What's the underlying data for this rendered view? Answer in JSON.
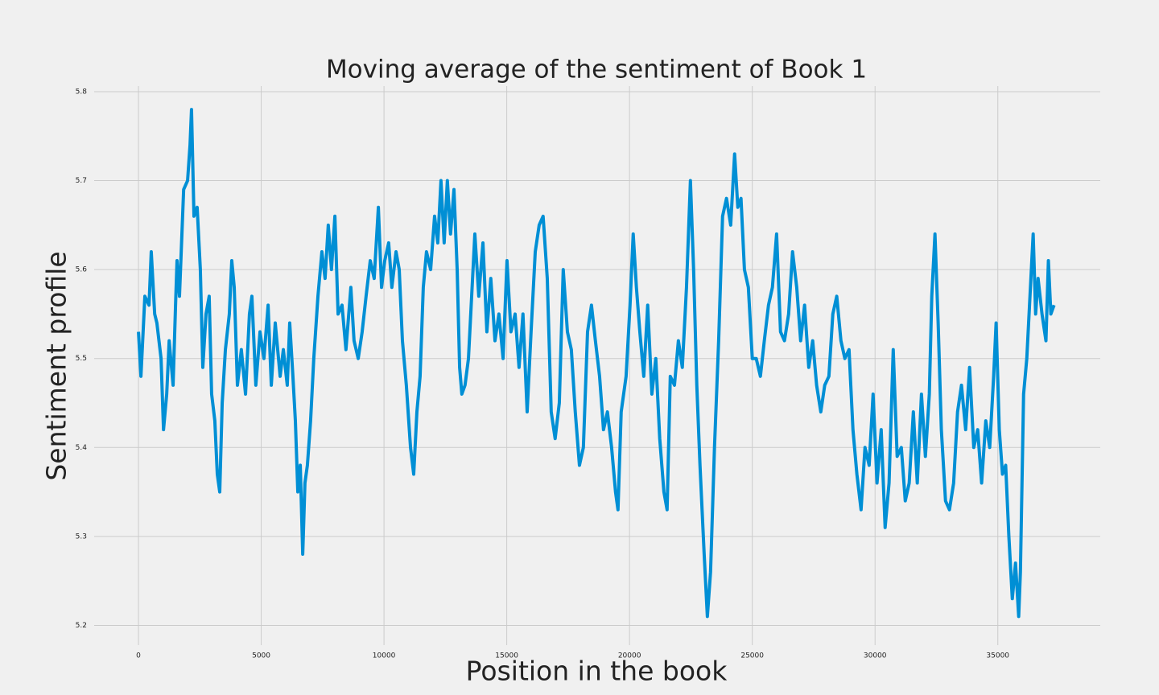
{
  "chart_data": {
    "type": "line",
    "title": "Moving average of the sentiment of  Book 1",
    "xlabel": "Position in the book",
    "ylabel": "Sentiment profile",
    "xlim": [
      -1870,
      39270
    ],
    "ylim": [
      5.176,
      5.809
    ],
    "xticks": [
      0,
      5000,
      10000,
      15000,
      20000,
      25000,
      30000,
      35000
    ],
    "yticks": [
      5.2,
      5.3,
      5.4,
      5.5,
      5.6,
      5.7,
      5.8
    ],
    "grid": true,
    "series": [
      {
        "color": "#008fd5",
        "x": [
          0,
          100,
          260,
          430,
          520,
          660,
          750,
          920,
          1020,
          1150,
          1250,
          1410,
          1510,
          1570,
          1670,
          1840,
          2000,
          2100,
          2160,
          2260,
          2390,
          2520,
          2620,
          2750,
          2880,
          2980,
          3110,
          3210,
          3310,
          3410,
          3540,
          3700,
          3800,
          3900,
          4030,
          4190,
          4360,
          4520,
          4620,
          4780,
          4950,
          5110,
          5280,
          5410,
          5570,
          5770,
          5900,
          6060,
          6160,
          6290,
          6390,
          6490,
          6590,
          6690,
          6780,
          6880,
          7010,
          7140,
          7310,
          7470,
          7600,
          7730,
          7860,
          8000,
          8130,
          8290,
          8450,
          8650,
          8780,
          8950,
          9110,
          9270,
          9440,
          9600,
          9770,
          9900,
          10030,
          10190,
          10320,
          10490,
          10620,
          10750,
          10910,
          11080,
          11210,
          11340,
          11470,
          11600,
          11730,
          11900,
          12060,
          12190,
          12320,
          12450,
          12580,
          12710,
          12850,
          12980,
          13080,
          13170,
          13300,
          13440,
          13570,
          13700,
          13860,
          14030,
          14190,
          14350,
          14520,
          14680,
          14850,
          15010,
          15170,
          15340,
          15500,
          15660,
          15830,
          15990,
          16160,
          16320,
          16480,
          16650,
          16810,
          16970,
          17140,
          17300,
          17470,
          17630,
          17790,
          17960,
          18120,
          18290,
          18450,
          18610,
          18780,
          18940,
          19100,
          19270,
          19430,
          19530,
          19660,
          19860,
          20020,
          20150,
          20280,
          20420,
          20580,
          20740,
          20910,
          21070,
          21230,
          21400,
          21530,
          21660,
          21830,
          21990,
          22150,
          22320,
          22480,
          22610,
          22740,
          22870,
          23040,
          23170,
          23300,
          23460,
          23630,
          23790,
          23950,
          24120,
          24280,
          24410,
          24540,
          24680,
          24840,
          25000,
          25160,
          25330,
          25490,
          25660,
          25820,
          25990,
          26150,
          26310,
          26480,
          26640,
          26810,
          26970,
          27130,
          27300,
          27460,
          27620,
          27790,
          27950,
          28120,
          28280,
          28440,
          28610,
          28770,
          28940,
          29100,
          29260,
          29430,
          29590,
          29760,
          29920,
          30080,
          30250,
          30410,
          30570,
          30740,
          30900,
          31070,
          31230,
          31390,
          31560,
          31720,
          31890,
          32050,
          32210,
          32310,
          32440,
          32570,
          32700,
          32870,
          33030,
          33200,
          33360,
          33520,
          33690,
          33850,
          34020,
          34180,
          34340,
          34510,
          34670,
          34830,
          34930,
          35060,
          35190,
          35320,
          35450,
          35590,
          35720,
          35850,
          35920,
          36050,
          36180,
          36310,
          36440,
          36540,
          36640,
          36800,
          36960,
          37060,
          37160,
          37290
        ],
        "values": [
          5.53,
          5.48,
          5.57,
          5.56,
          5.62,
          5.55,
          5.54,
          5.5,
          5.42,
          5.46,
          5.52,
          5.47,
          5.56,
          5.61,
          5.57,
          5.69,
          5.7,
          5.74,
          5.78,
          5.66,
          5.67,
          5.6,
          5.49,
          5.55,
          5.57,
          5.46,
          5.43,
          5.37,
          5.35,
          5.45,
          5.51,
          5.55,
          5.61,
          5.58,
          5.47,
          5.51,
          5.46,
          5.55,
          5.57,
          5.47,
          5.53,
          5.5,
          5.56,
          5.47,
          5.54,
          5.48,
          5.51,
          5.47,
          5.54,
          5.48,
          5.43,
          5.35,
          5.38,
          5.28,
          5.36,
          5.38,
          5.43,
          5.5,
          5.57,
          5.62,
          5.59,
          5.65,
          5.6,
          5.66,
          5.55,
          5.56,
          5.51,
          5.58,
          5.52,
          5.5,
          5.53,
          5.57,
          5.61,
          5.59,
          5.67,
          5.58,
          5.61,
          5.63,
          5.58,
          5.62,
          5.6,
          5.52,
          5.47,
          5.4,
          5.37,
          5.44,
          5.48,
          5.58,
          5.62,
          5.6,
          5.66,
          5.63,
          5.7,
          5.63,
          5.7,
          5.64,
          5.69,
          5.6,
          5.49,
          5.46,
          5.47,
          5.5,
          5.57,
          5.64,
          5.57,
          5.63,
          5.53,
          5.59,
          5.52,
          5.55,
          5.5,
          5.61,
          5.53,
          5.55,
          5.49,
          5.55,
          5.44,
          5.53,
          5.62,
          5.65,
          5.66,
          5.59,
          5.44,
          5.41,
          5.45,
          5.6,
          5.53,
          5.51,
          5.44,
          5.38,
          5.4,
          5.53,
          5.56,
          5.52,
          5.48,
          5.42,
          5.44,
          5.4,
          5.35,
          5.33,
          5.44,
          5.48,
          5.56,
          5.64,
          5.58,
          5.53,
          5.48,
          5.56,
          5.46,
          5.5,
          5.41,
          5.35,
          5.33,
          5.48,
          5.47,
          5.52,
          5.49,
          5.58,
          5.7,
          5.6,
          5.47,
          5.38,
          5.28,
          5.21,
          5.26,
          5.4,
          5.52,
          5.66,
          5.68,
          5.65,
          5.73,
          5.67,
          5.68,
          5.6,
          5.58,
          5.5,
          5.5,
          5.48,
          5.52,
          5.56,
          5.58,
          5.64,
          5.53,
          5.52,
          5.55,
          5.62,
          5.58,
          5.52,
          5.56,
          5.49,
          5.52,
          5.47,
          5.44,
          5.47,
          5.48,
          5.55,
          5.57,
          5.52,
          5.5,
          5.51,
          5.42,
          5.37,
          5.33,
          5.4,
          5.38,
          5.46,
          5.36,
          5.42,
          5.31,
          5.36,
          5.51,
          5.39,
          5.4,
          5.34,
          5.36,
          5.44,
          5.36,
          5.46,
          5.39,
          5.46,
          5.57,
          5.64,
          5.54,
          5.42,
          5.34,
          5.33,
          5.36,
          5.44,
          5.47,
          5.42,
          5.49,
          5.4,
          5.42,
          5.36,
          5.43,
          5.4,
          5.48,
          5.54,
          5.42,
          5.37,
          5.38,
          5.3,
          5.23,
          5.27,
          5.21,
          5.26,
          5.46,
          5.5,
          5.57,
          5.64,
          5.55,
          5.59,
          5.55,
          5.52,
          5.61,
          5.55,
          5.56
        ]
      }
    ]
  }
}
